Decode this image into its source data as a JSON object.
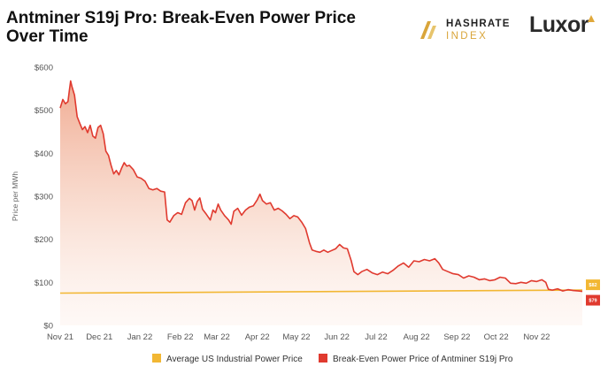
{
  "header": {
    "title": "Antminer S19j Pro: Break-Even Power Price Over Time",
    "logo_hashrate_line1": "HASHRATE",
    "logo_hashrate_line2": "INDEX",
    "logo_luxor": "Luxor"
  },
  "colors": {
    "break_even": "#e03a2f",
    "industrial": "#f2b733",
    "area_top": "#eb8f6e",
    "logo_gold": "#d9a53a"
  },
  "chart_data": {
    "type": "line",
    "title": "Antminer S19j Pro: Break-Even Power Price Over Time",
    "ylabel": "Price per MWh",
    "xlabel": "",
    "ylim": [
      0,
      600
    ],
    "yticks": [
      0,
      100,
      200,
      300,
      400,
      500,
      600
    ],
    "ytick_labels": [
      "$0",
      "$100",
      "$200",
      "$300",
      "$400",
      "$500",
      "$600"
    ],
    "x_range": [
      "2021-11-01",
      "2022-12-06"
    ],
    "xticks": [
      {
        "date": "2021-11-01",
        "label": "Nov 21"
      },
      {
        "date": "2021-12-01",
        "label": "Dec 21"
      },
      {
        "date": "2022-01-01",
        "label": "Jan 22"
      },
      {
        "date": "2022-02-01",
        "label": "Feb 22"
      },
      {
        "date": "2022-03-01",
        "label": "Mar 22"
      },
      {
        "date": "2022-04-01",
        "label": "Apr 22"
      },
      {
        "date": "2022-05-01",
        "label": "May 22"
      },
      {
        "date": "2022-06-01",
        "label": "Jun 22"
      },
      {
        "date": "2022-07-01",
        "label": "Jul 22"
      },
      {
        "date": "2022-08-01",
        "label": "Aug 22"
      },
      {
        "date": "2022-09-01",
        "label": "Sep 22"
      },
      {
        "date": "2022-10-01",
        "label": "Oct 22"
      },
      {
        "date": "2022-11-01",
        "label": "Nov 22"
      }
    ],
    "grid": false,
    "legend_position": "bottom",
    "series": [
      {
        "name": "Average US Industrial Power Price",
        "color": "#f2b733",
        "end_label": "$82",
        "points": [
          [
            "2021-11-01",
            75
          ],
          [
            "2022-12-06",
            82
          ]
        ]
      },
      {
        "name": "Break-Even Power Price of Antminer S19j Pro",
        "color": "#e03a2f",
        "end_label": "$79",
        "area_fill": true,
        "points": [
          [
            "2021-11-01",
            505
          ],
          [
            "2021-11-03",
            525
          ],
          [
            "2021-11-05",
            515
          ],
          [
            "2021-11-07",
            520
          ],
          [
            "2021-11-08",
            545
          ],
          [
            "2021-11-09",
            568
          ],
          [
            "2021-11-10",
            555
          ],
          [
            "2021-11-12",
            535
          ],
          [
            "2021-11-14",
            485
          ],
          [
            "2021-11-16",
            470
          ],
          [
            "2021-11-18",
            455
          ],
          [
            "2021-11-20",
            462
          ],
          [
            "2021-11-22",
            448
          ],
          [
            "2021-11-24",
            465
          ],
          [
            "2021-11-26",
            440
          ],
          [
            "2021-11-28",
            435
          ],
          [
            "2021-11-30",
            460
          ],
          [
            "2021-12-02",
            465
          ],
          [
            "2021-12-04",
            445
          ],
          [
            "2021-12-06",
            405
          ],
          [
            "2021-12-08",
            395
          ],
          [
            "2021-12-10",
            372
          ],
          [
            "2021-12-12",
            352
          ],
          [
            "2021-12-14",
            360
          ],
          [
            "2021-12-16",
            350
          ],
          [
            "2021-12-18",
            365
          ],
          [
            "2021-12-20",
            378
          ],
          [
            "2021-12-22",
            370
          ],
          [
            "2021-12-24",
            372
          ],
          [
            "2021-12-27",
            362
          ],
          [
            "2021-12-30",
            345
          ],
          [
            "2022-01-02",
            342
          ],
          [
            "2022-01-05",
            335
          ],
          [
            "2022-01-08",
            318
          ],
          [
            "2022-01-11",
            315
          ],
          [
            "2022-01-14",
            318
          ],
          [
            "2022-01-17",
            312
          ],
          [
            "2022-01-20",
            310
          ],
          [
            "2022-01-22",
            245
          ],
          [
            "2022-01-24",
            240
          ],
          [
            "2022-01-27",
            255
          ],
          [
            "2022-01-30",
            262
          ],
          [
            "2022-02-02",
            258
          ],
          [
            "2022-02-05",
            285
          ],
          [
            "2022-02-08",
            295
          ],
          [
            "2022-02-10",
            290
          ],
          [
            "2022-02-12",
            268
          ],
          [
            "2022-02-14",
            288
          ],
          [
            "2022-02-16",
            296
          ],
          [
            "2022-02-18",
            270
          ],
          [
            "2022-02-21",
            258
          ],
          [
            "2022-02-24",
            245
          ],
          [
            "2022-02-26",
            268
          ],
          [
            "2022-02-28",
            262
          ],
          [
            "2022-03-02",
            282
          ],
          [
            "2022-03-04",
            268
          ],
          [
            "2022-03-07",
            255
          ],
          [
            "2022-03-10",
            245
          ],
          [
            "2022-03-12",
            235
          ],
          [
            "2022-03-14",
            265
          ],
          [
            "2022-03-17",
            272
          ],
          [
            "2022-03-20",
            256
          ],
          [
            "2022-03-23",
            268
          ],
          [
            "2022-03-26",
            275
          ],
          [
            "2022-03-29",
            278
          ],
          [
            "2022-04-01",
            292
          ],
          [
            "2022-04-03",
            305
          ],
          [
            "2022-04-05",
            290
          ],
          [
            "2022-04-08",
            282
          ],
          [
            "2022-04-11",
            285
          ],
          [
            "2022-04-14",
            268
          ],
          [
            "2022-04-17",
            272
          ],
          [
            "2022-04-20",
            266
          ],
          [
            "2022-04-23",
            258
          ],
          [
            "2022-04-26",
            248
          ],
          [
            "2022-04-29",
            255
          ],
          [
            "2022-05-02",
            252
          ],
          [
            "2022-05-05",
            240
          ],
          [
            "2022-05-08",
            225
          ],
          [
            "2022-05-11",
            192
          ],
          [
            "2022-05-13",
            175
          ],
          [
            "2022-05-16",
            172
          ],
          [
            "2022-05-19",
            170
          ],
          [
            "2022-05-22",
            175
          ],
          [
            "2022-05-25",
            170
          ],
          [
            "2022-05-28",
            174
          ],
          [
            "2022-05-31",
            178
          ],
          [
            "2022-06-03",
            188
          ],
          [
            "2022-06-06",
            180
          ],
          [
            "2022-06-09",
            178
          ],
          [
            "2022-06-12",
            150
          ],
          [
            "2022-06-14",
            125
          ],
          [
            "2022-06-17",
            118
          ],
          [
            "2022-06-20",
            125
          ],
          [
            "2022-06-24",
            130
          ],
          [
            "2022-06-28",
            122
          ],
          [
            "2022-07-02",
            118
          ],
          [
            "2022-07-06",
            124
          ],
          [
            "2022-07-10",
            120
          ],
          [
            "2022-07-14",
            128
          ],
          [
            "2022-07-18",
            138
          ],
          [
            "2022-07-22",
            145
          ],
          [
            "2022-07-26",
            135
          ],
          [
            "2022-07-30",
            150
          ],
          [
            "2022-08-03",
            148
          ],
          [
            "2022-08-07",
            153
          ],
          [
            "2022-08-11",
            150
          ],
          [
            "2022-08-15",
            155
          ],
          [
            "2022-08-18",
            145
          ],
          [
            "2022-08-21",
            130
          ],
          [
            "2022-08-25",
            125
          ],
          [
            "2022-08-29",
            120
          ],
          [
            "2022-09-02",
            118
          ],
          [
            "2022-09-06",
            110
          ],
          [
            "2022-09-10",
            115
          ],
          [
            "2022-09-14",
            112
          ],
          [
            "2022-09-18",
            106
          ],
          [
            "2022-09-22",
            108
          ],
          [
            "2022-09-26",
            104
          ],
          [
            "2022-09-30",
            106
          ],
          [
            "2022-10-04",
            112
          ],
          [
            "2022-10-08",
            110
          ],
          [
            "2022-10-12",
            98
          ],
          [
            "2022-10-16",
            97
          ],
          [
            "2022-10-20",
            100
          ],
          [
            "2022-10-24",
            98
          ],
          [
            "2022-10-28",
            104
          ],
          [
            "2022-11-01",
            102
          ],
          [
            "2022-11-05",
            106
          ],
          [
            "2022-11-08",
            100
          ],
          [
            "2022-11-10",
            84
          ],
          [
            "2022-11-13",
            82
          ],
          [
            "2022-11-17",
            85
          ],
          [
            "2022-11-21",
            80
          ],
          [
            "2022-11-25",
            83
          ],
          [
            "2022-11-29",
            81
          ],
          [
            "2022-12-03",
            80
          ],
          [
            "2022-12-06",
            79
          ]
        ]
      }
    ]
  }
}
